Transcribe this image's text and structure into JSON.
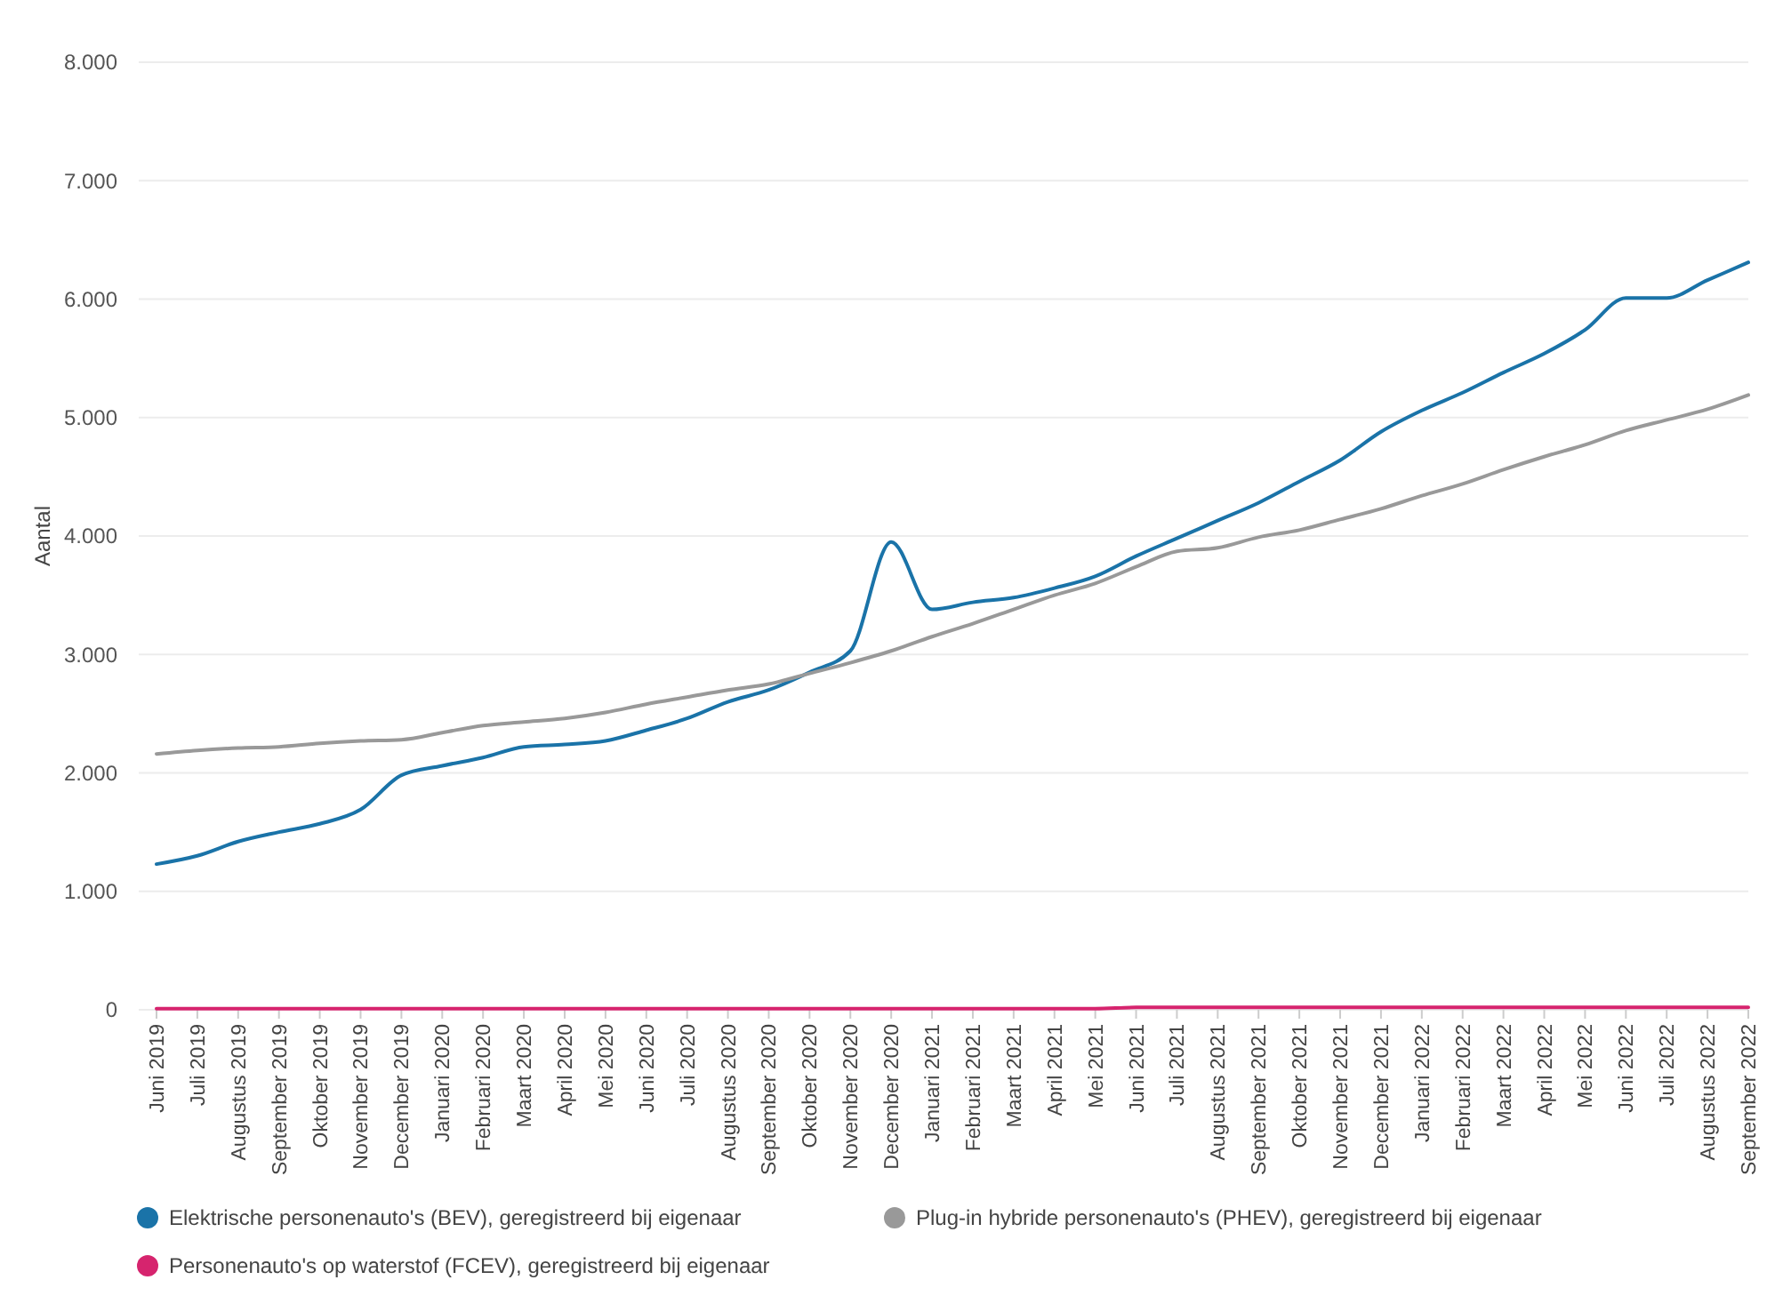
{
  "chart_data": {
    "type": "line",
    "ylabel": "Aantal",
    "categories": [
      "Juni 2019",
      "Juli 2019",
      "Augustus 2019",
      "September 2019",
      "Oktober 2019",
      "November 2019",
      "December 2019",
      "Januari 2020",
      "Februari 2020",
      "Maart 2020",
      "April 2020",
      "Mei 2020",
      "Juni 2020",
      "Juli 2020",
      "Augustus 2020",
      "September 2020",
      "Oktober 2020",
      "November 2020",
      "December 2020",
      "Januari 2021",
      "Februari 2021",
      "Maart 2021",
      "April 2021",
      "Mei 2021",
      "Juni 2021",
      "Juli 2021",
      "Augustus 2021",
      "September 2021",
      "Oktober 2021",
      "November 2021",
      "December 2021",
      "Januari 2022",
      "Februari 2022",
      "Maart 2022",
      "April 2022",
      "Mei 2022",
      "Juni 2022",
      "Juli 2022",
      "Augustus 2022",
      "September 2022"
    ],
    "series": [
      {
        "name": "Elektrische personenauto's (BEV), geregistreerd bij eigenaar",
        "color": "#1a73a8",
        "values": [
          1230,
          1300,
          1420,
          1500,
          1570,
          1690,
          1980,
          2060,
          2130,
          2220,
          2240,
          2270,
          2360,
          2460,
          2600,
          2700,
          2850,
          3030,
          3950,
          3380,
          3440,
          3480,
          3560,
          3660,
          3830,
          3980,
          4130,
          4280,
          4460,
          4640,
          4880,
          5060,
          5210,
          5380,
          5540,
          5740,
          6010,
          6010,
          6160,
          6310
        ]
      },
      {
        "name": "Plug-in hybride personenauto's (PHEV), geregistreerd bij eigenaar",
        "color": "#999999",
        "values": [
          2160,
          2190,
          2210,
          2220,
          2250,
          2270,
          2280,
          2340,
          2400,
          2430,
          2460,
          2510,
          2580,
          2640,
          2700,
          2750,
          2840,
          2930,
          3030,
          3150,
          3260,
          3380,
          3500,
          3600,
          3740,
          3870,
          3900,
          3990,
          4050,
          4140,
          4230,
          4340,
          4440,
          4560,
          4670,
          4770,
          4890,
          4980,
          5070,
          5190
        ]
      },
      {
        "name": "Personenauto's op waterstof (FCEV), geregistreerd bij eigenaar",
        "color": "#d6246e",
        "values": [
          10,
          10,
          10,
          10,
          10,
          10,
          10,
          10,
          10,
          10,
          10,
          10,
          10,
          10,
          10,
          10,
          10,
          10,
          10,
          10,
          10,
          10,
          10,
          10,
          20,
          20,
          20,
          20,
          20,
          20,
          20,
          20,
          20,
          20,
          20,
          20,
          20,
          20,
          20,
          20
        ]
      }
    ],
    "ylim": [
      0,
      8000
    ],
    "yticks": [
      {
        "value": 0,
        "label": "0"
      },
      {
        "value": 1000,
        "label": "1.000"
      },
      {
        "value": 2000,
        "label": "2.000"
      },
      {
        "value": 3000,
        "label": "3.000"
      },
      {
        "value": 4000,
        "label": "4.000"
      },
      {
        "value": 5000,
        "label": "5.000"
      },
      {
        "value": 6000,
        "label": "6.000"
      },
      {
        "value": 7000,
        "label": "7.000"
      },
      {
        "value": 8000,
        "label": "8.000"
      }
    ],
    "grid": "y",
    "legend": "bottom",
    "marker": "none",
    "line_style": "solid"
  }
}
